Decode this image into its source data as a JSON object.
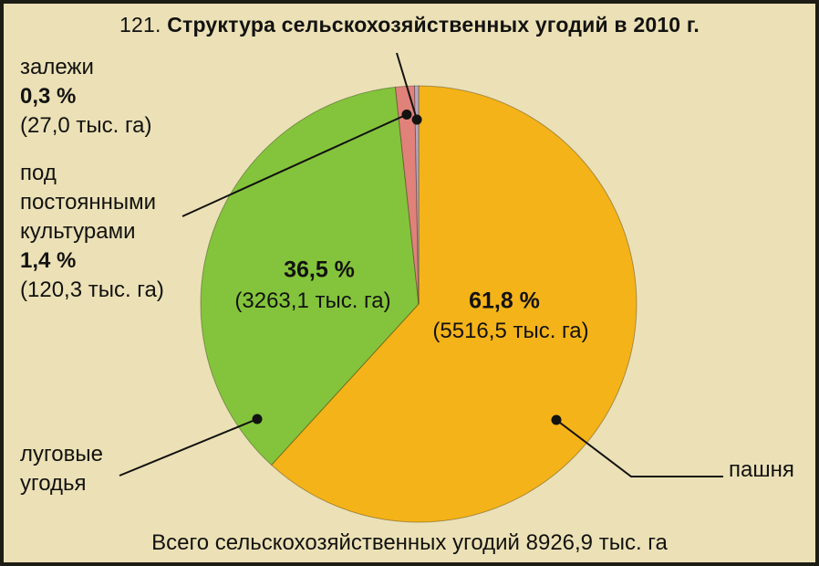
{
  "title": {
    "number": "121.",
    "text": "Структура сельскохозяйственных угодий в 2010 г."
  },
  "footer": {
    "text": "Всего сельскохозяйственных угодий 8926,9 тыс. га"
  },
  "chart_data": {
    "type": "pie",
    "title": "121. Структура сельскохозяйственных угодий в 2010 г.",
    "footer": "Всего сельскохозяйственных угодий 8926,9 тыс. га",
    "total": {
      "value": 8926.9,
      "unit": "тыс. га"
    },
    "start_angle_deg": 0,
    "direction": "clockwise",
    "slices": [
      {
        "label": "пашня",
        "percent": 61.8,
        "value": 5516.5,
        "unit": "тыс. га",
        "percent_label": "61,8 %",
        "value_label": "(5516,5 тыс. га)",
        "color": "#f4b319"
      },
      {
        "label": "луговые угодья",
        "percent": 36.5,
        "value": 3263.1,
        "unit": "тыс. га",
        "percent_label": "36,5 %",
        "value_label": "(3263,1 тыс. га)",
        "color": "#84c43c"
      },
      {
        "label": "под постоянными культурами",
        "percent": 1.4,
        "value": 120.3,
        "unit": "тыс. га",
        "percent_label": "1,4 %",
        "value_label": "(120,3 тыс. га)",
        "color": "#e0827a"
      },
      {
        "label": "залежи",
        "percent": 0.3,
        "value": 27.0,
        "unit": "тыс. га",
        "percent_label": "0,3 %",
        "value_label": "(27,0 тыс. га)",
        "color": "#b5a7c7"
      }
    ]
  }
}
